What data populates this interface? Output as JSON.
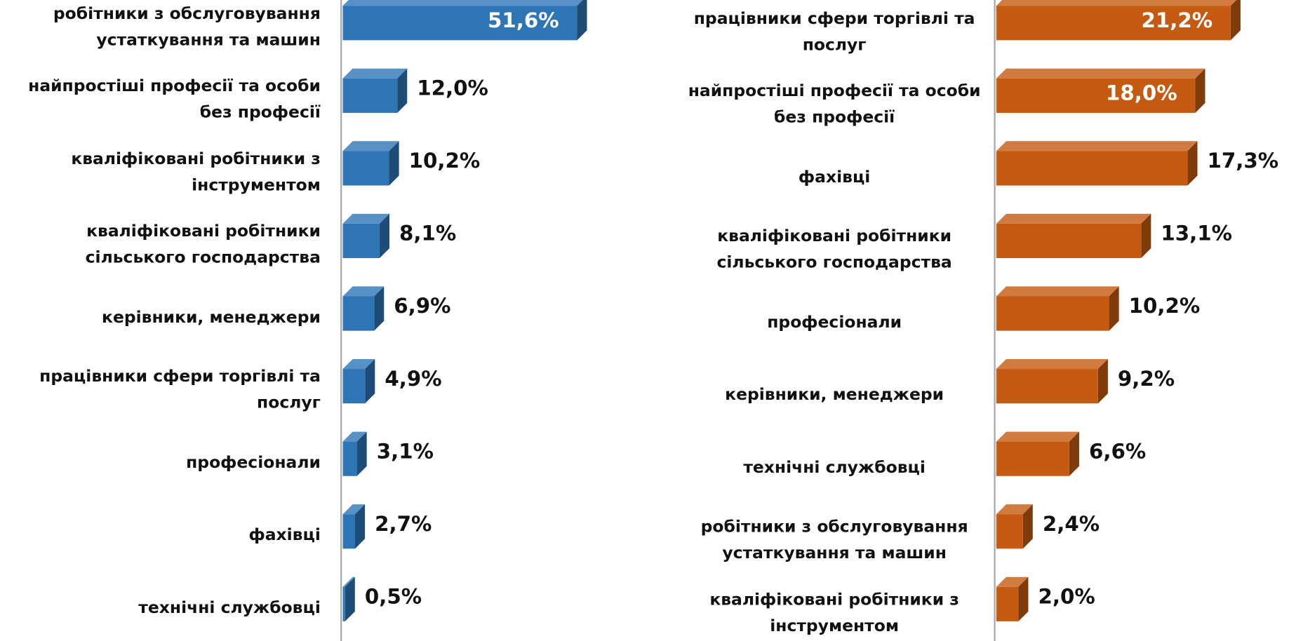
{
  "chart_data": [
    {
      "type": "bar3d-horizontal",
      "color": "#2e75b6",
      "categories": [
        "робітники з обслуговування устаткування та машин",
        "найпростіші професії та особи без професії",
        "кваліфіковані робітники з інструментом",
        "кваліфіковані робітники сільського господарства",
        "керівники, менеджери",
        "працівники сфери торгівлі та послуг",
        "професіонали",
        "фахівці",
        "технічні службовці"
      ],
      "values": [
        51.6,
        12.0,
        10.2,
        8.1,
        6.9,
        4.9,
        3.1,
        2.7,
        0.5
      ],
      "value_labels": [
        "51,6%",
        "12,0%",
        "10,2%",
        "8,1%",
        "6,9%",
        "4,9%",
        "3,1%",
        "2,7%",
        "0,5%"
      ]
    },
    {
      "type": "bar3d-horizontal",
      "color": "#c55a11",
      "categories": [
        "працівники сфери торгівлі та послуг",
        "найпростіші професії та особи без професії",
        "фахівці",
        "кваліфіковані робітники сільського господарства",
        "професіонали",
        "керівники, менеджери",
        "технічні службовці",
        "робітники з обслуговування устаткування та машин",
        "кваліфіковані робітники з інструментом"
      ],
      "values": [
        21.2,
        18.0,
        17.3,
        13.1,
        10.2,
        9.2,
        6.6,
        2.4,
        2.0
      ],
      "value_labels": [
        "21,2%",
        "18,0%",
        "17,3%",
        "13,1%",
        "10,2%",
        "9,2%",
        "6,6%",
        "2,4%",
        "2,0%"
      ]
    }
  ]
}
